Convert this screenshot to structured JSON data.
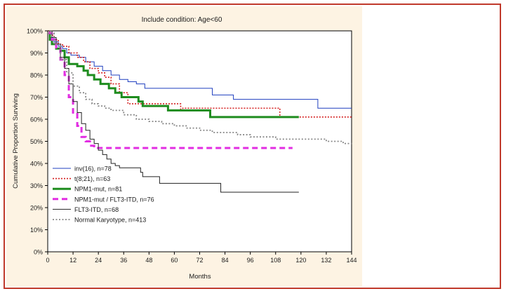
{
  "colors": {
    "frame_border": "#c0392b",
    "panel_bg": "#fdf3e3",
    "plot_bg": "#ffffff"
  },
  "chart_data": {
    "type": "line",
    "step": true,
    "title": "Include condition: Age<60",
    "xlabel": "Months",
    "ylabel": "Cumulative Proportion Surviving",
    "xlim": [
      0,
      144
    ],
    "ylim": [
      0,
      100
    ],
    "x_ticks": [
      "0",
      "12",
      "24",
      "36",
      "48",
      "60",
      "72",
      "84",
      "96",
      "108",
      "120",
      "132",
      "144"
    ],
    "y_ticks": [
      "0%",
      "10%",
      "20%",
      "30%",
      "40%",
      "50%",
      "60%",
      "70%",
      "80%",
      "90%",
      "100%"
    ],
    "grid": false,
    "legend_position": "bottom-left",
    "series": [
      {
        "name": "inv(16), n=78",
        "color": "#1f3fbf",
        "style": "solid-thin",
        "points": [
          [
            0,
            100
          ],
          [
            1,
            97
          ],
          [
            3,
            95
          ],
          [
            5,
            93
          ],
          [
            7,
            92
          ],
          [
            9,
            90
          ],
          [
            11,
            89
          ],
          [
            15,
            88
          ],
          [
            18,
            86
          ],
          [
            22,
            84
          ],
          [
            26,
            82
          ],
          [
            30,
            80
          ],
          [
            34,
            78
          ],
          [
            38,
            77
          ],
          [
            42,
            76
          ],
          [
            46,
            74
          ],
          [
            75,
            74
          ],
          [
            78,
            71
          ],
          [
            88,
            69
          ],
          [
            127,
            69
          ],
          [
            128,
            65
          ],
          [
            144,
            65
          ]
        ]
      },
      {
        "name": "t(8;21), n=63",
        "color": "#d42020",
        "style": "dotted",
        "points": [
          [
            0,
            100
          ],
          [
            1,
            98
          ],
          [
            3,
            96
          ],
          [
            5,
            94
          ],
          [
            7,
            93
          ],
          [
            10,
            90
          ],
          [
            14,
            88
          ],
          [
            17,
            86
          ],
          [
            20,
            83
          ],
          [
            24,
            81
          ],
          [
            27,
            79
          ],
          [
            30,
            76
          ],
          [
            34,
            72
          ],
          [
            38,
            67
          ],
          [
            52,
            67
          ],
          [
            63,
            64
          ],
          [
            64,
            65
          ],
          [
            108,
            65
          ],
          [
            110,
            61
          ],
          [
            144,
            61
          ]
        ]
      },
      {
        "name": "NPM1-mut, n=81",
        "color": "#1e8c1e",
        "style": "solid-thick",
        "points": [
          [
            0,
            99
          ],
          [
            1,
            96
          ],
          [
            2,
            94
          ],
          [
            4,
            92
          ],
          [
            6,
            91
          ],
          [
            8,
            88
          ],
          [
            10,
            85
          ],
          [
            14,
            84
          ],
          [
            17,
            82
          ],
          [
            19,
            80
          ],
          [
            22,
            78
          ],
          [
            25,
            76
          ],
          [
            29,
            74
          ],
          [
            32,
            72
          ],
          [
            35,
            70
          ],
          [
            43,
            68
          ],
          [
            45,
            66
          ],
          [
            56,
            66
          ],
          [
            57,
            64
          ],
          [
            76,
            64
          ],
          [
            77,
            61
          ],
          [
            119,
            61
          ]
        ]
      },
      {
        "name": "NPM1-mut / FLT3-ITD, n=76",
        "color": "#e22de2",
        "style": "dashed-thick",
        "points": [
          [
            0,
            99
          ],
          [
            2,
            96
          ],
          [
            4,
            92
          ],
          [
            6,
            87
          ],
          [
            8,
            80
          ],
          [
            10,
            70
          ],
          [
            12,
            63
          ],
          [
            14,
            57
          ],
          [
            16,
            52
          ],
          [
            18,
            50
          ],
          [
            20,
            48
          ],
          [
            22,
            47
          ],
          [
            116,
            47
          ]
        ]
      },
      {
        "name": "FLT3-ITD, n=68",
        "color": "#222222",
        "style": "solid-thin",
        "points": [
          [
            0,
            100
          ],
          [
            2,
            97
          ],
          [
            4,
            94
          ],
          [
            6,
            88
          ],
          [
            8,
            83
          ],
          [
            10,
            76
          ],
          [
            12,
            68
          ],
          [
            14,
            63
          ],
          [
            16,
            58
          ],
          [
            18,
            55
          ],
          [
            20,
            51
          ],
          [
            22,
            49
          ],
          [
            24,
            46
          ],
          [
            26,
            44
          ],
          [
            28,
            42
          ],
          [
            30,
            40
          ],
          [
            32,
            39
          ],
          [
            34,
            38
          ],
          [
            43,
            38
          ],
          [
            44,
            36
          ],
          [
            45,
            34
          ],
          [
            52,
            34
          ],
          [
            53,
            31
          ],
          [
            81,
            31
          ],
          [
            82,
            27
          ],
          [
            119,
            27
          ]
        ]
      },
      {
        "name": "Normal Karyotype, n=413",
        "color": "#888888",
        "style": "dotted-grey",
        "points": [
          [
            0,
            99
          ],
          [
            3,
            94
          ],
          [
            6,
            87
          ],
          [
            9,
            81
          ],
          [
            12,
            75
          ],
          [
            15,
            72
          ],
          [
            18,
            69
          ],
          [
            21,
            67
          ],
          [
            24,
            66
          ],
          [
            27,
            65
          ],
          [
            30,
            64
          ],
          [
            36,
            62
          ],
          [
            42,
            60
          ],
          [
            48,
            59
          ],
          [
            54,
            58
          ],
          [
            60,
            57
          ],
          [
            66,
            56
          ],
          [
            72,
            55
          ],
          [
            78,
            54
          ],
          [
            84,
            54
          ],
          [
            90,
            53
          ],
          [
            96,
            52
          ],
          [
            108,
            51
          ],
          [
            120,
            51
          ],
          [
            132,
            50
          ],
          [
            140,
            49
          ],
          [
            144,
            48
          ]
        ]
      }
    ]
  }
}
